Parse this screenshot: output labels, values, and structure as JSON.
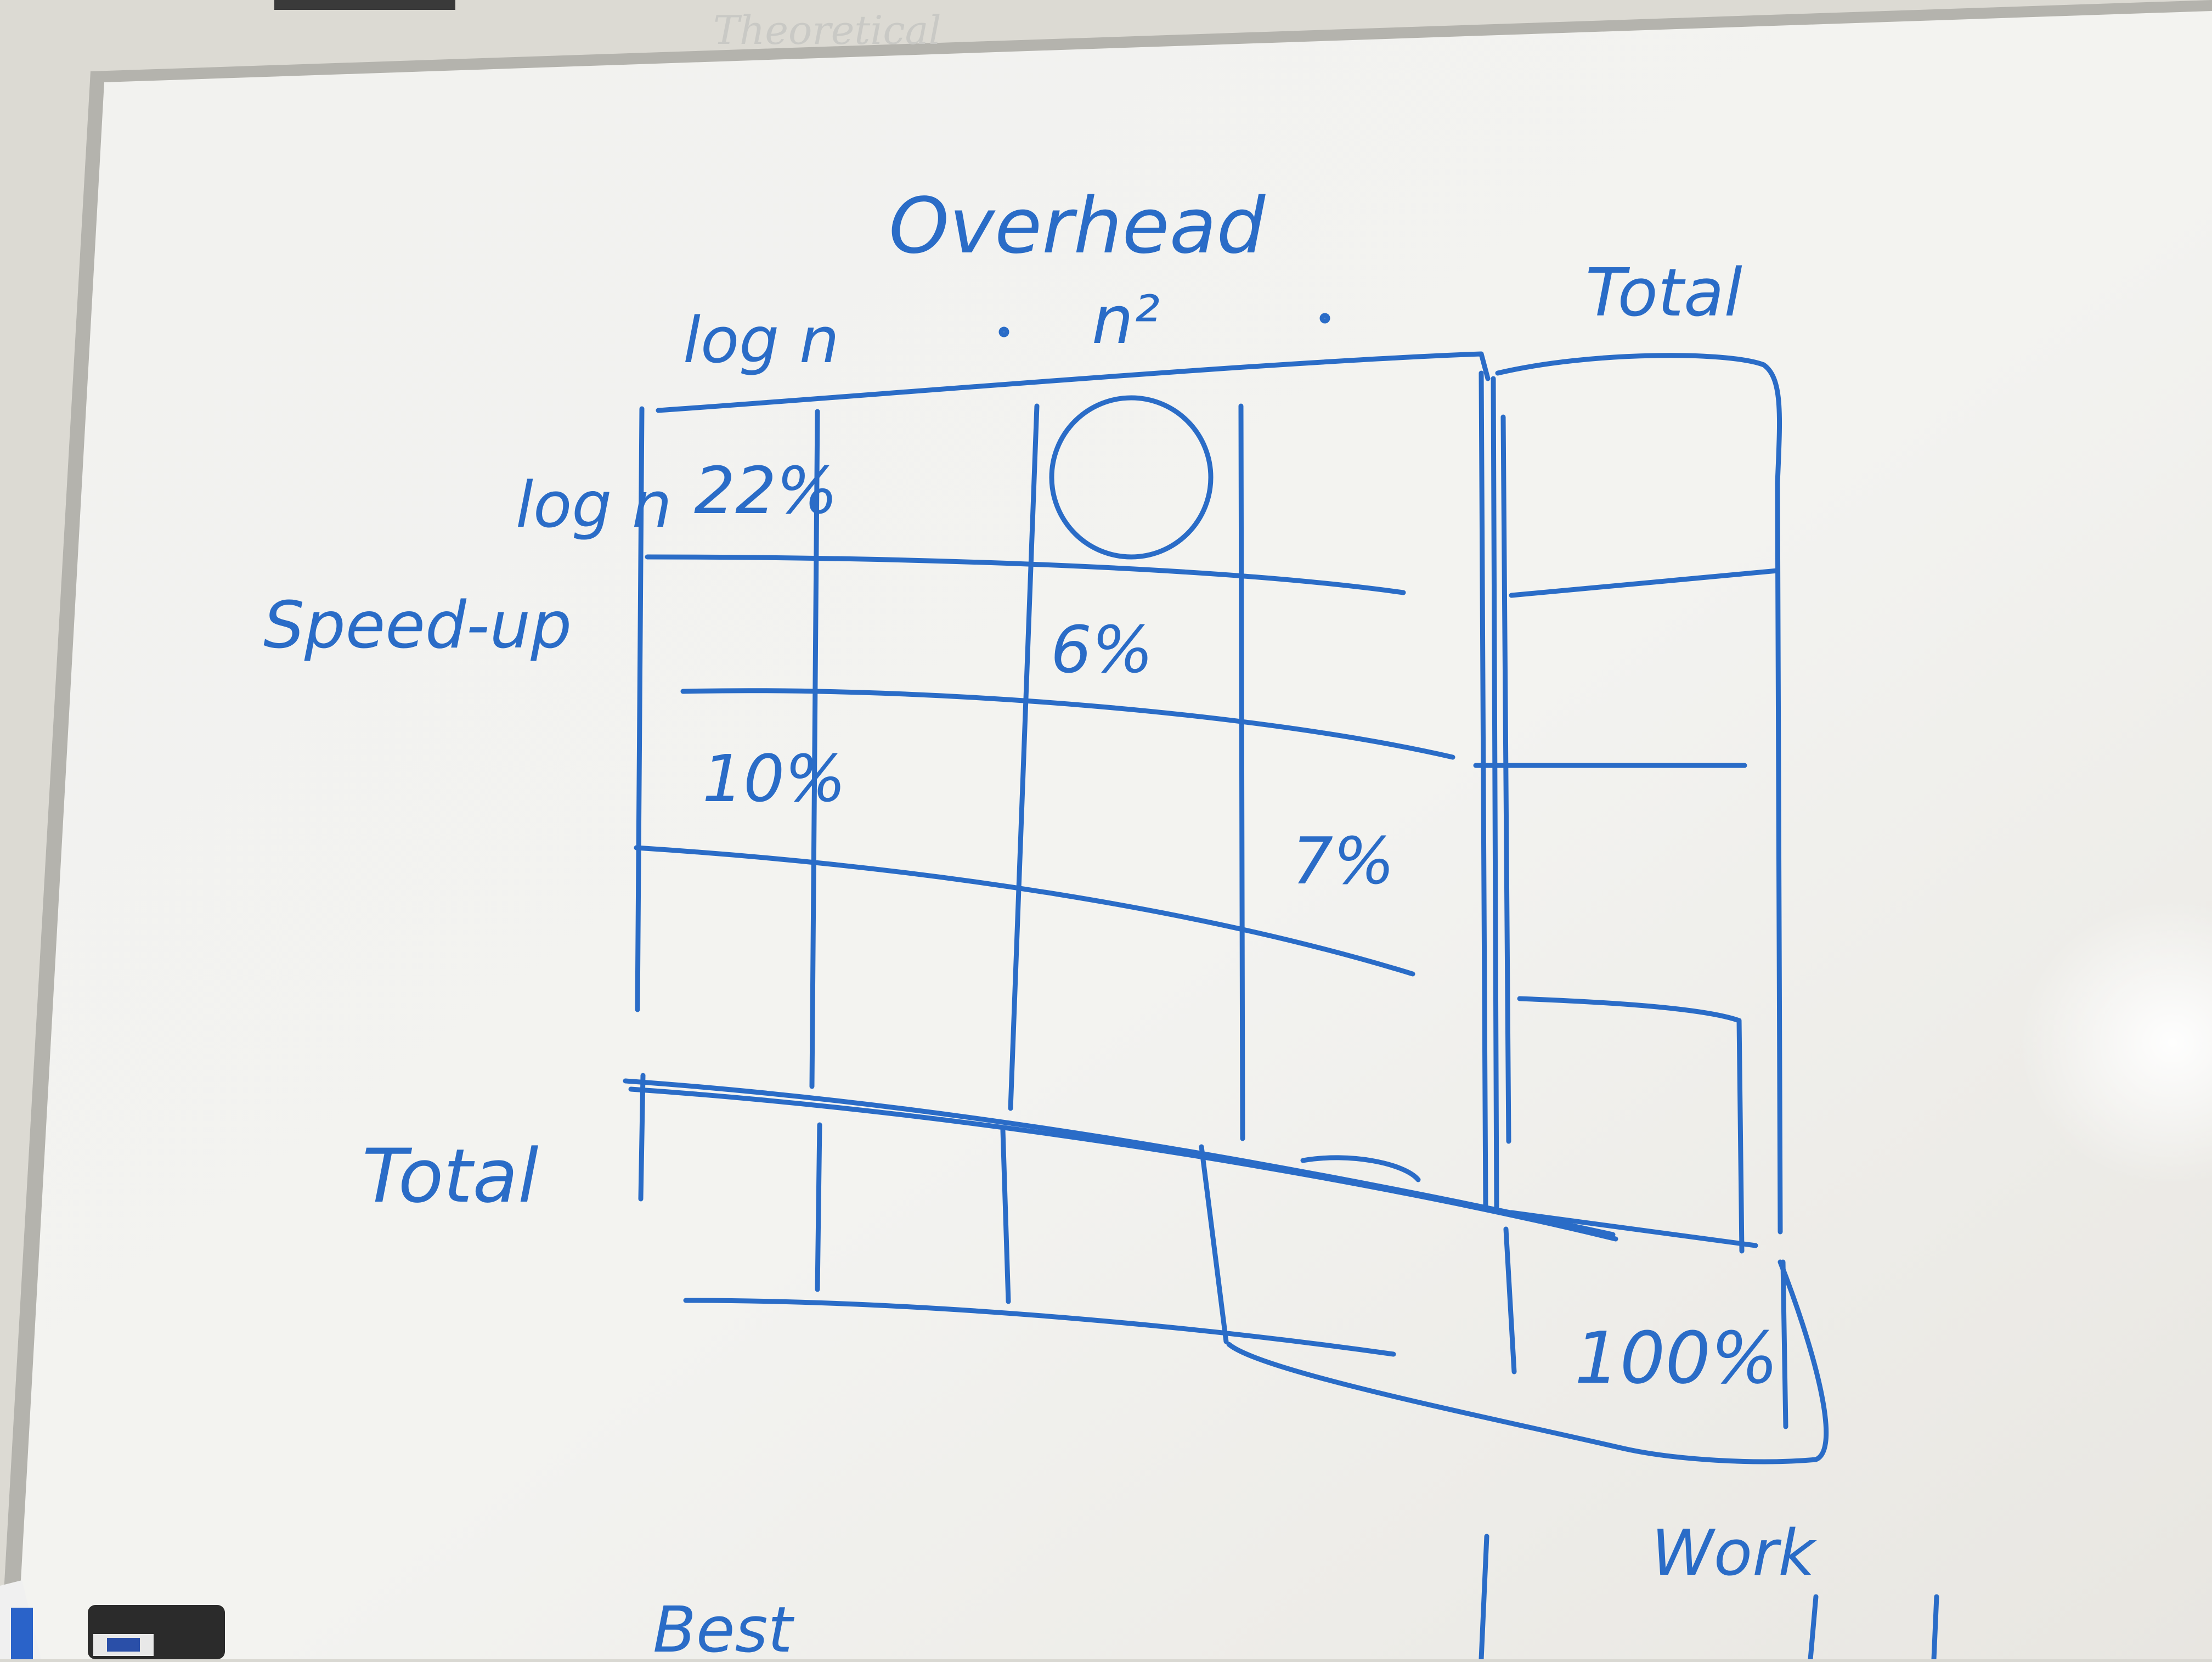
{
  "whiteboard": {
    "ink_color": "#2a6cc7",
    "board_color": "#f4f4f1",
    "frame_color": "#b7b6b0",
    "top_faded_text": "Theoretical",
    "column_group_label": "Overhead",
    "column_headers": [
      "log n",
      "n²",
      "Total"
    ],
    "row_group_label": "Speed-up",
    "row_headers": [
      "log n",
      "Total"
    ],
    "cells": {
      "r1c1": "22%",
      "r2c3": "6%",
      "r3c1": "10%",
      "r3c4": "7%",
      "grand_total": "100%"
    },
    "bottom_labels": [
      "Work",
      "Best"
    ]
  }
}
